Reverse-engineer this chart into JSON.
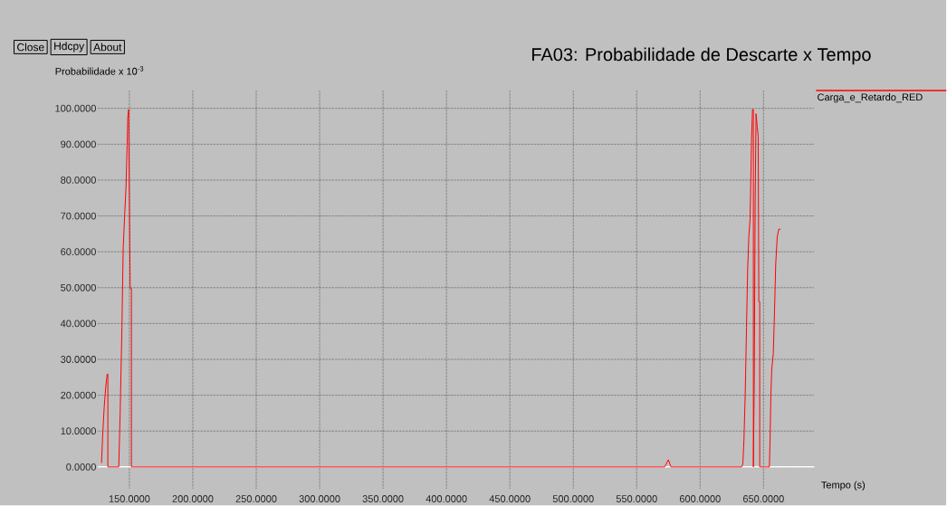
{
  "chart_data": {
    "type": "line",
    "title": "FA03: Probabilidade de Descarte x Tempo",
    "ylabel": "Probabilidade x 10$^{-3}$",
    "xlabel": "Tempo (s)",
    "annotations": [
      "Close",
      "Hdcpy",
      "About"
    ],
    "xlim": [
      125,
      690
    ],
    "ylim": [
      -6,
      105
    ],
    "xticks": [
      {
        "value": 150,
        "label": "150.0000"
      },
      {
        "value": 200,
        "label": "200.0000"
      },
      {
        "value": 250,
        "label": "250.0000"
      },
      {
        "value": 300,
        "label": "300.0000"
      },
      {
        "value": 350,
        "label": "350.0000"
      },
      {
        "value": 400,
        "label": "400.0000"
      },
      {
        "value": 450,
        "label": "450.0000"
      },
      {
        "value": 500,
        "label": "500.0000"
      },
      {
        "value": 550,
        "label": "550.0000"
      },
      {
        "value": 600,
        "label": "600.0000"
      },
      {
        "value": 650,
        "label": "650.0000"
      }
    ],
    "yticks": [
      {
        "value": 0,
        "label": "0.0000"
      },
      {
        "value": 10,
        "label": "10.0000"
      },
      {
        "value": 20,
        "label": "20.0000"
      },
      {
        "value": 30,
        "label": "30.0000"
      },
      {
        "value": 40,
        "label": "40.0000"
      },
      {
        "value": 50,
        "label": "50.0000"
      },
      {
        "value": 60,
        "label": "60.0000"
      },
      {
        "value": 70,
        "label": "70.0000"
      },
      {
        "value": 80,
        "label": "80.0000"
      },
      {
        "value": 90,
        "label": "90.0000"
      },
      {
        "value": 100,
        "label": "100.0000"
      }
    ],
    "grid": true,
    "legend": "top right",
    "line_style": "solid",
    "ref_lines": [
      {
        "axis": "y",
        "value": 0,
        "color": "#ffffff"
      }
    ],
    "series": [
      {
        "name": "Carga_e_Retardo_RED",
        "color": "#ff0000",
        "x": [
          128.0,
          128.9,
          130.1,
          131.3,
          132.5,
          133.0,
          133.0,
          141.6,
          142.7,
          144.1,
          145.1,
          146.3,
          147.3,
          148.2,
          148.7,
          149.4,
          150.6,
          151.6,
          151.6,
          572,
          575,
          577,
          632.7,
          633.7,
          634.6,
          635.6,
          636.6,
          637.5,
          638.4,
          639.4,
          639.9,
          640.6,
          641.3,
          642.0,
          642.0,
          642.7,
          643.4,
          644.1,
          645.1,
          645.8,
          646.3,
          647.0,
          647.0,
          654.6,
          655.1,
          655.8,
          656.5,
          657.7,
          658.7,
          659.6,
          660.8,
          662.0,
          663.4
        ],
        "values": [
          1.1,
          8.6,
          16.6,
          22.2,
          25.9,
          25.9,
          0,
          0,
          15,
          38.9,
          61.2,
          70.6,
          77.9,
          89.7,
          97.3,
          99.7,
          49.8,
          49.8,
          0,
          0,
          2,
          0,
          0,
          0.8,
          7.8,
          20.9,
          38.9,
          55.4,
          64.2,
          69.1,
          78.6,
          91.8,
          99.7,
          99.7,
          0,
          24.7,
          73.8,
          98.5,
          94.7,
          92.2,
          46.1,
          46.1,
          0,
          0,
          6.5,
          20,
          27.2,
          31.7,
          43.6,
          56.5,
          64.1,
          66.3,
          66.3
        ]
      }
    ]
  }
}
